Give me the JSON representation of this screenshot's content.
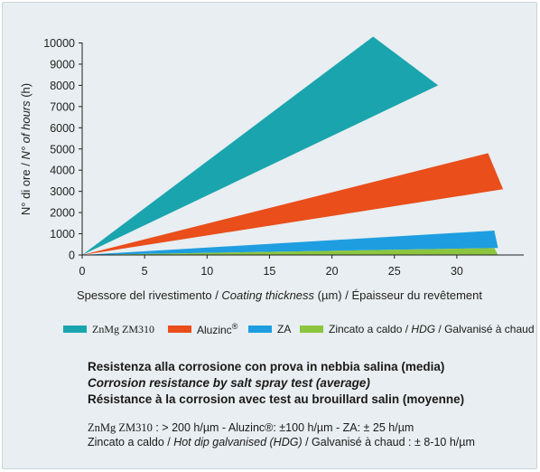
{
  "chart_data": {
    "type": "area",
    "xlabel": {
      "it": "Spessore del rivestimento",
      "sep1": " / ",
      "en": "Coating thickness",
      "unit": " (µm) / ",
      "fr": "Épaisseur du revêtement"
    },
    "ylabel": {
      "it": "N° di ore",
      "sep": " / ",
      "en": "N° of hours",
      "unit": " (h)"
    },
    "xlim": [
      0,
      35
    ],
    "ylim": [
      0,
      10000
    ],
    "xticks": [
      0,
      5,
      10,
      15,
      20,
      25,
      30
    ],
    "yticks": [
      0,
      1000,
      2000,
      3000,
      4000,
      5000,
      6000,
      7000,
      8000,
      9000,
      10000
    ],
    "grid": false,
    "series": [
      {
        "name": "ZnMg ZM310",
        "color": "#1aa5ae",
        "points": [
          [
            0,
            0
          ],
          [
            23.3,
            10300
          ],
          [
            28.5,
            8000
          ]
        ]
      },
      {
        "name": "Aluzinc®",
        "color": "#e94e1b",
        "points": [
          [
            0,
            0
          ],
          [
            32.5,
            4800
          ],
          [
            33.7,
            3100
          ]
        ]
      },
      {
        "name": "ZA",
        "color": "#1e9ee0",
        "points": [
          [
            0,
            0
          ],
          [
            33,
            1150
          ],
          [
            33.3,
            330
          ]
        ]
      },
      {
        "name": "Zincato a caldo / HDG / Galvanisé à chaud",
        "color": "#8cc63f",
        "points": [
          [
            0,
            0
          ],
          [
            33,
            330
          ],
          [
            33.3,
            0
          ]
        ]
      }
    ]
  },
  "legend": [
    {
      "label": "ZnMg ZM310",
      "color": "#1aa5ae"
    },
    {
      "label": "Aluzinc",
      "sup": "®",
      "color": "#e94e1b"
    },
    {
      "label": "ZA",
      "color": "#1e9ee0"
    },
    {
      "label_it": "Zincato a caldo",
      "sep1": " / ",
      "label_en": "HDG",
      "sep2": " / ",
      "label_fr": "Galvanisé à chaud",
      "color": "#8cc63f"
    }
  ],
  "caption": {
    "line1": "Resistenza alla corrosione con prova in nebbia salina (media)",
    "line2": "Corrosion resistance by salt spray test (average)",
    "line3": "Résistance à la corrosion avec test au brouillard salin (moyenne)"
  },
  "notes": {
    "line1_prefix": "ZnMg ZM310",
    "line1_rest": " : > 200 h/µm - Aluzinc®: ±100 h/µm - ZA: ± 25 h/µm",
    "line2_it": "Zincato a caldo / ",
    "line2_en": "Hot dip galvanised (HDG)",
    "line2_fr": " / Galvanisé à chaud : ± 8-10 h/µm"
  }
}
